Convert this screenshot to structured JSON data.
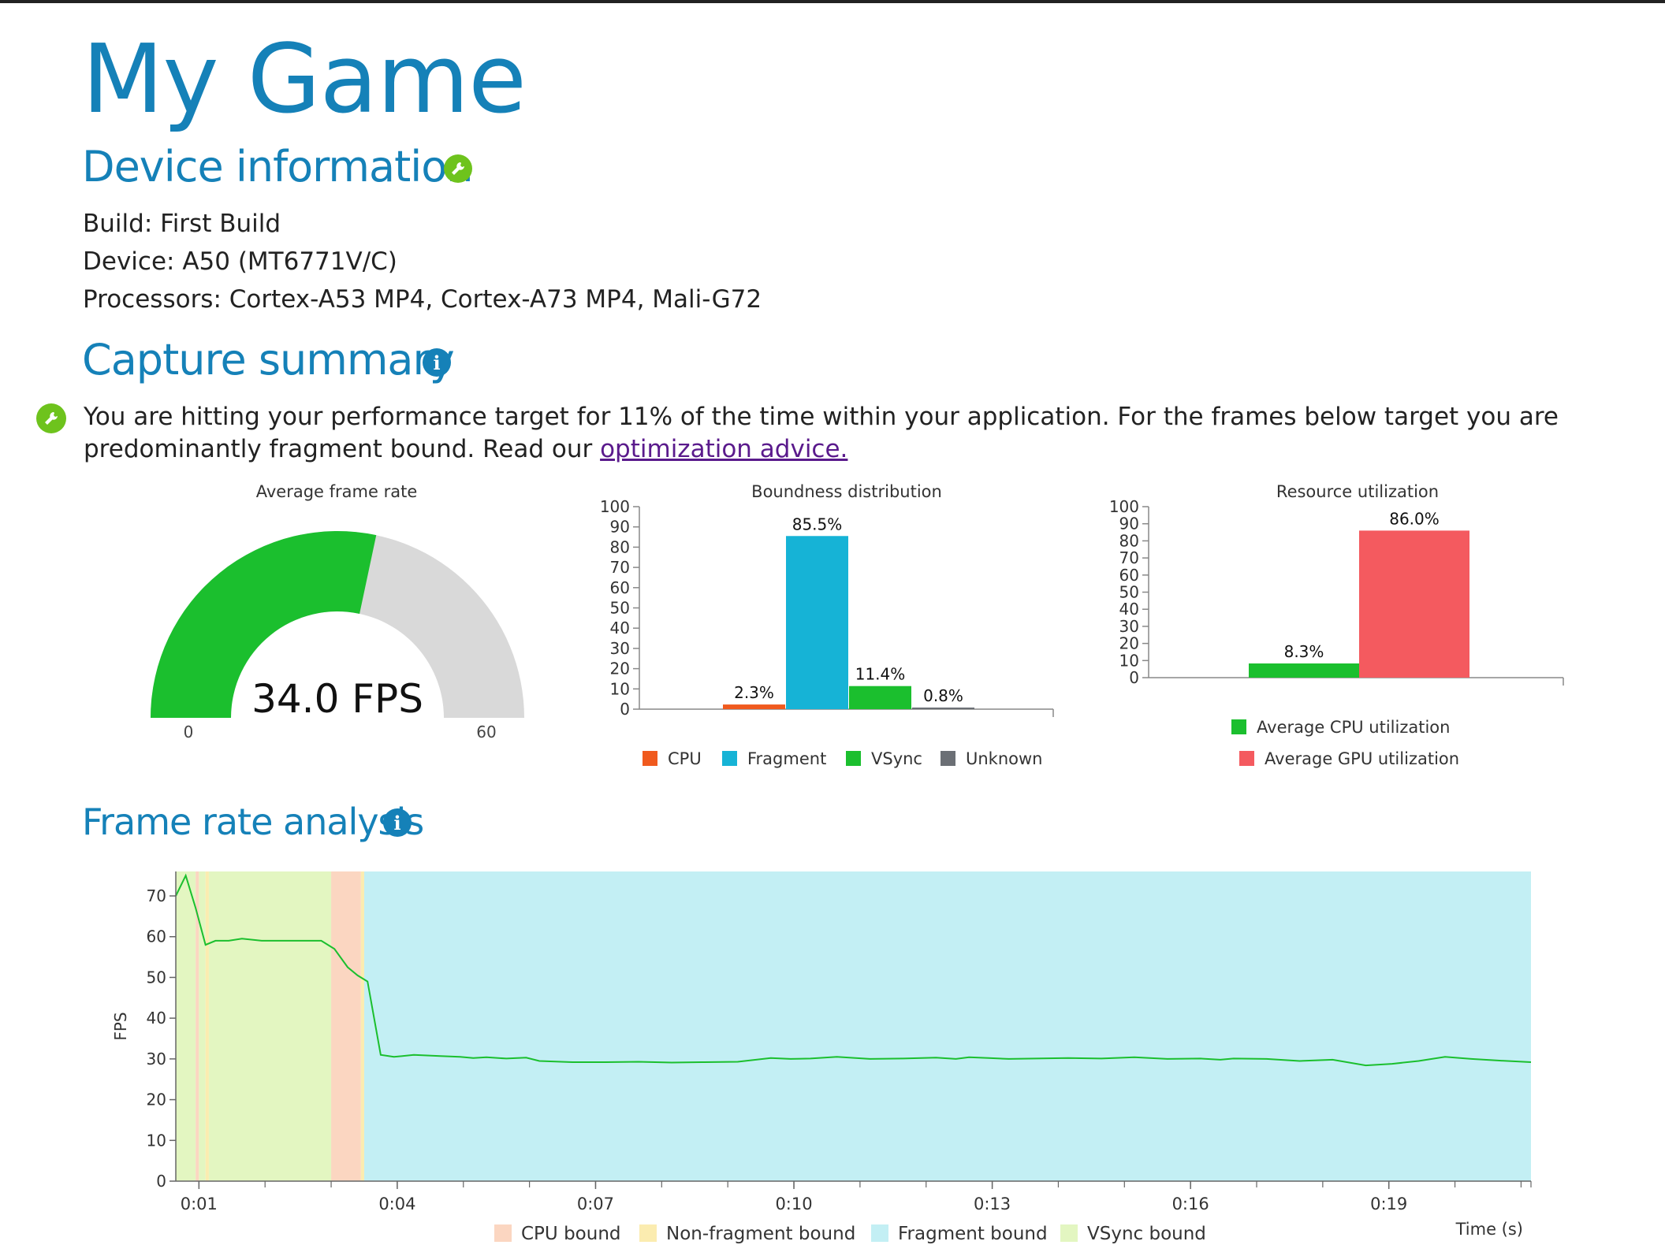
{
  "title": "My Game",
  "device_section": {
    "heading": "Device information",
    "icon": "wrench-icon",
    "lines": [
      "Build: First Build",
      "Device: A50 (MT6771V/C)",
      "Processors: Cortex-A53 MP4, Cortex-A73 MP4, Mali-G72"
    ]
  },
  "capture_section": {
    "heading": "Capture summary",
    "icon": "info-icon",
    "status_icon": "wrench-icon",
    "summary_text": "You are hitting your performance target for 11% of the time within your application. For the frames below target you are predominantly fragment bound. Read our ",
    "advice_link": "optimization advice."
  },
  "colors": {
    "accent": "#1581b8",
    "green": "#6ec31d",
    "cpu": "#f05a1e",
    "fragment": "#16b3d6",
    "vsync": "#1bbf2e",
    "unknown": "#6b6f75",
    "gpu_util": "#f45a5f",
    "cpu_bound_band": "#fbd6c1",
    "nonfragment_band": "#fbecb0",
    "fragment_band": "#c3eff4",
    "vsync_band": "#e3f6c1"
  },
  "chart_data": [
    {
      "type": "gauge",
      "title": "Average frame rate",
      "value": 34.0,
      "value_label": "34.0 FPS",
      "min": 0,
      "max": 60,
      "min_label": "0",
      "max_label": "60"
    },
    {
      "type": "bar",
      "title": "Boundness distribution",
      "categories": [
        "CPU",
        "Fragment",
        "VSync",
        "Unknown"
      ],
      "values": [
        2.3,
        85.5,
        11.4,
        0.8
      ],
      "value_labels": [
        "2.3%",
        "85.5%",
        "11.4%",
        "0.8%"
      ],
      "colors": [
        "#f05a1e",
        "#16b3d6",
        "#1bbf2e",
        "#6b6f75"
      ],
      "ylim": [
        0,
        100
      ],
      "yticks": [
        "0",
        "10",
        "20",
        "30",
        "40",
        "50",
        "60",
        "70",
        "80",
        "90",
        "100"
      ],
      "legend": [
        "CPU",
        "Fragment",
        "VSync",
        "Unknown"
      ]
    },
    {
      "type": "bar",
      "title": "Resource utilization",
      "categories": [
        "Average CPU utilization",
        "Average GPU utilization"
      ],
      "values": [
        8.3,
        86.0
      ],
      "value_labels": [
        "8.3%",
        "86.0%"
      ],
      "colors": [
        "#1bbf2e",
        "#f45a5f"
      ],
      "ylim": [
        0,
        100
      ],
      "yticks": [
        "0",
        "10",
        "20",
        "30",
        "40",
        "50",
        "60",
        "70",
        "80",
        "90",
        "100"
      ],
      "legend": [
        "Average CPU utilization",
        "Average GPU utilization"
      ]
    },
    {
      "type": "line",
      "title": "Frame rate analysis",
      "ylabel": "FPS",
      "xlabel": "Time (s)",
      "xlim": [
        0.0,
        20.5
      ],
      "ylim": [
        0,
        76
      ],
      "yticks": [
        "0",
        "10",
        "20",
        "30",
        "40",
        "50",
        "60",
        "70"
      ],
      "xticks": [
        {
          "t": 0.35,
          "label": "0:01"
        },
        {
          "t": 3.35,
          "label": "0:04"
        },
        {
          "t": 6.35,
          "label": "0:07"
        },
        {
          "t": 9.35,
          "label": "0:10"
        },
        {
          "t": 12.35,
          "label": "0:13"
        },
        {
          "t": 15.35,
          "label": "0:16"
        },
        {
          "t": 18.35,
          "label": "0:19"
        }
      ],
      "bands": [
        {
          "start": 0.0,
          "end": 0.3,
          "kind": "vsync"
        },
        {
          "start": 0.3,
          "end": 0.35,
          "kind": "cpu"
        },
        {
          "start": 0.35,
          "end": 0.45,
          "kind": "vsync"
        },
        {
          "start": 0.45,
          "end": 0.5,
          "kind": "nonfragment"
        },
        {
          "start": 0.5,
          "end": 2.35,
          "kind": "vsync"
        },
        {
          "start": 2.35,
          "end": 2.8,
          "kind": "cpu"
        },
        {
          "start": 2.8,
          "end": 2.85,
          "kind": "nonfragment"
        },
        {
          "start": 2.85,
          "end": 20.5,
          "kind": "fragment"
        }
      ],
      "series": [
        {
          "x": [
            0.0,
            0.15,
            0.3,
            0.45,
            0.6,
            0.8,
            1.0,
            1.3,
            1.6,
            2.0,
            2.2,
            2.4,
            2.6,
            2.75,
            2.9,
            3.1,
            3.3,
            3.6,
            4.0,
            4.3,
            4.5,
            4.7,
            5.0,
            5.3,
            5.5,
            6.0,
            6.5,
            7.0,
            7.5,
            8.0,
            8.5,
            9.0,
            9.3,
            9.6,
            10.0,
            10.5,
            11.0,
            11.5,
            11.8,
            12.0,
            12.3,
            12.6,
            13.0,
            13.5,
            14.0,
            14.5,
            15.0,
            15.5,
            15.8,
            16.0,
            16.5,
            17.0,
            17.5,
            18.0,
            18.4,
            18.8,
            19.2,
            19.6,
            20.0,
            20.5
          ],
          "y": [
            70,
            75,
            67,
            58,
            59,
            59,
            59.5,
            59,
            59,
            59,
            59,
            57,
            52.5,
            50.5,
            49,
            31,
            30.5,
            31,
            30.7,
            30.5,
            30.2,
            30.4,
            30.1,
            30.3,
            29.5,
            29.2,
            29.2,
            29.3,
            29.1,
            29.2,
            29.3,
            30.2,
            30.0,
            30.1,
            30.5,
            30.0,
            30.1,
            30.3,
            30.0,
            30.4,
            30.2,
            30.0,
            30.1,
            30.2,
            30.1,
            30.4,
            30.0,
            30.1,
            29.8,
            30.1,
            30.0,
            29.5,
            29.8,
            28.4,
            28.8,
            29.5,
            30.5,
            30.0,
            29.6,
            29.2
          ]
        }
      ],
      "legend": [
        "CPU bound",
        "Non-fragment bound",
        "Fragment bound",
        "VSync bound"
      ]
    }
  ]
}
